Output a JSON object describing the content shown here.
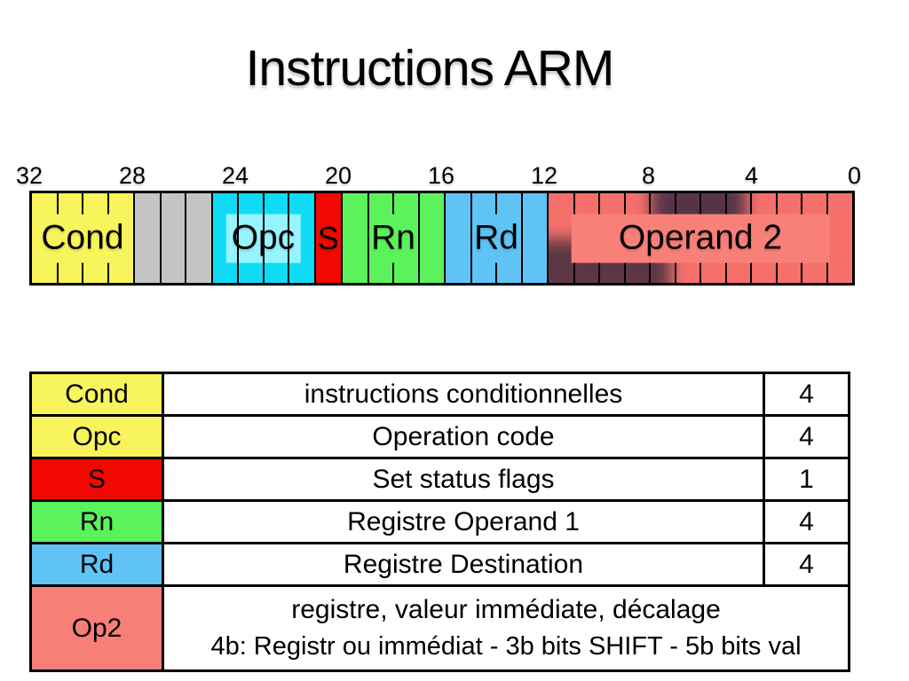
{
  "slide": {
    "title": "Instructions ARM",
    "background_color": "#FFFFFF"
  },
  "bitfield": {
    "total_bits": 32,
    "bit_labels": [
      "32",
      "28",
      "24",
      "20",
      "16",
      "12",
      "8",
      "4",
      "0"
    ],
    "fields": [
      {
        "name": "cond",
        "label": "Cond",
        "bits": 4,
        "color": "#F8F45B",
        "label_box": {
          "width_pct": 86,
          "color": "#F8F45B"
        },
        "lines_above_box": false
      },
      {
        "name": "unused",
        "label": "",
        "bits": 3,
        "color": "#C4C4C4"
      },
      {
        "name": "opc",
        "label": "Opc",
        "bits": 4,
        "color": "#0FDCF4",
        "label_box": {
          "width_pct": 74,
          "color": "#96F4FF"
        },
        "lines_above_box": true
      },
      {
        "name": "s",
        "label": "S",
        "bits": 1,
        "color": "#F20800"
      },
      {
        "name": "rn",
        "label": "Rn",
        "bits": 4,
        "color": "#5CF25C",
        "label_box": {
          "width_pct": 44,
          "color": "#5CF25C"
        },
        "lines_above_box": false
      },
      {
        "name": "rd",
        "label": "Rd",
        "bits": 4,
        "color": "#5FC3F6",
        "label_box": {
          "width_pct": 44,
          "color": "#5FC3F6"
        },
        "lines_above_box": false
      },
      {
        "name": "op2",
        "label": "Operand 2",
        "bits": 12,
        "color": "#F6706B",
        "label_box": {
          "width_pct": 85,
          "color": "#F97F79"
        },
        "lines_above_box": false,
        "shadow": true
      }
    ]
  },
  "table": {
    "rows": [
      {
        "key": "Cond",
        "key_color": "#F8F45B",
        "description": "instructions conditionnelles",
        "bits": "4"
      },
      {
        "key": "Opc",
        "key_color": "#F8F45B",
        "description": "Operation code",
        "bits": "4"
      },
      {
        "key": "S",
        "key_color": "#F20800",
        "description": "Set status flags",
        "bits": "1"
      },
      {
        "key": "Rn",
        "key_color": "#5CF25C",
        "description": "Registre Operand 1",
        "bits": "4"
      },
      {
        "key": "Rd",
        "key_color": "#5FC3F6",
        "description": "Registre Destination",
        "bits": "4"
      },
      {
        "key": "Op2",
        "key_color": "#F87E78",
        "description": "registre, valeur immédiate, décalage",
        "description_line2": "4b: Registr ou immédiat - 3b bits SHIFT - 5b bits val",
        "bits": ""
      }
    ]
  }
}
